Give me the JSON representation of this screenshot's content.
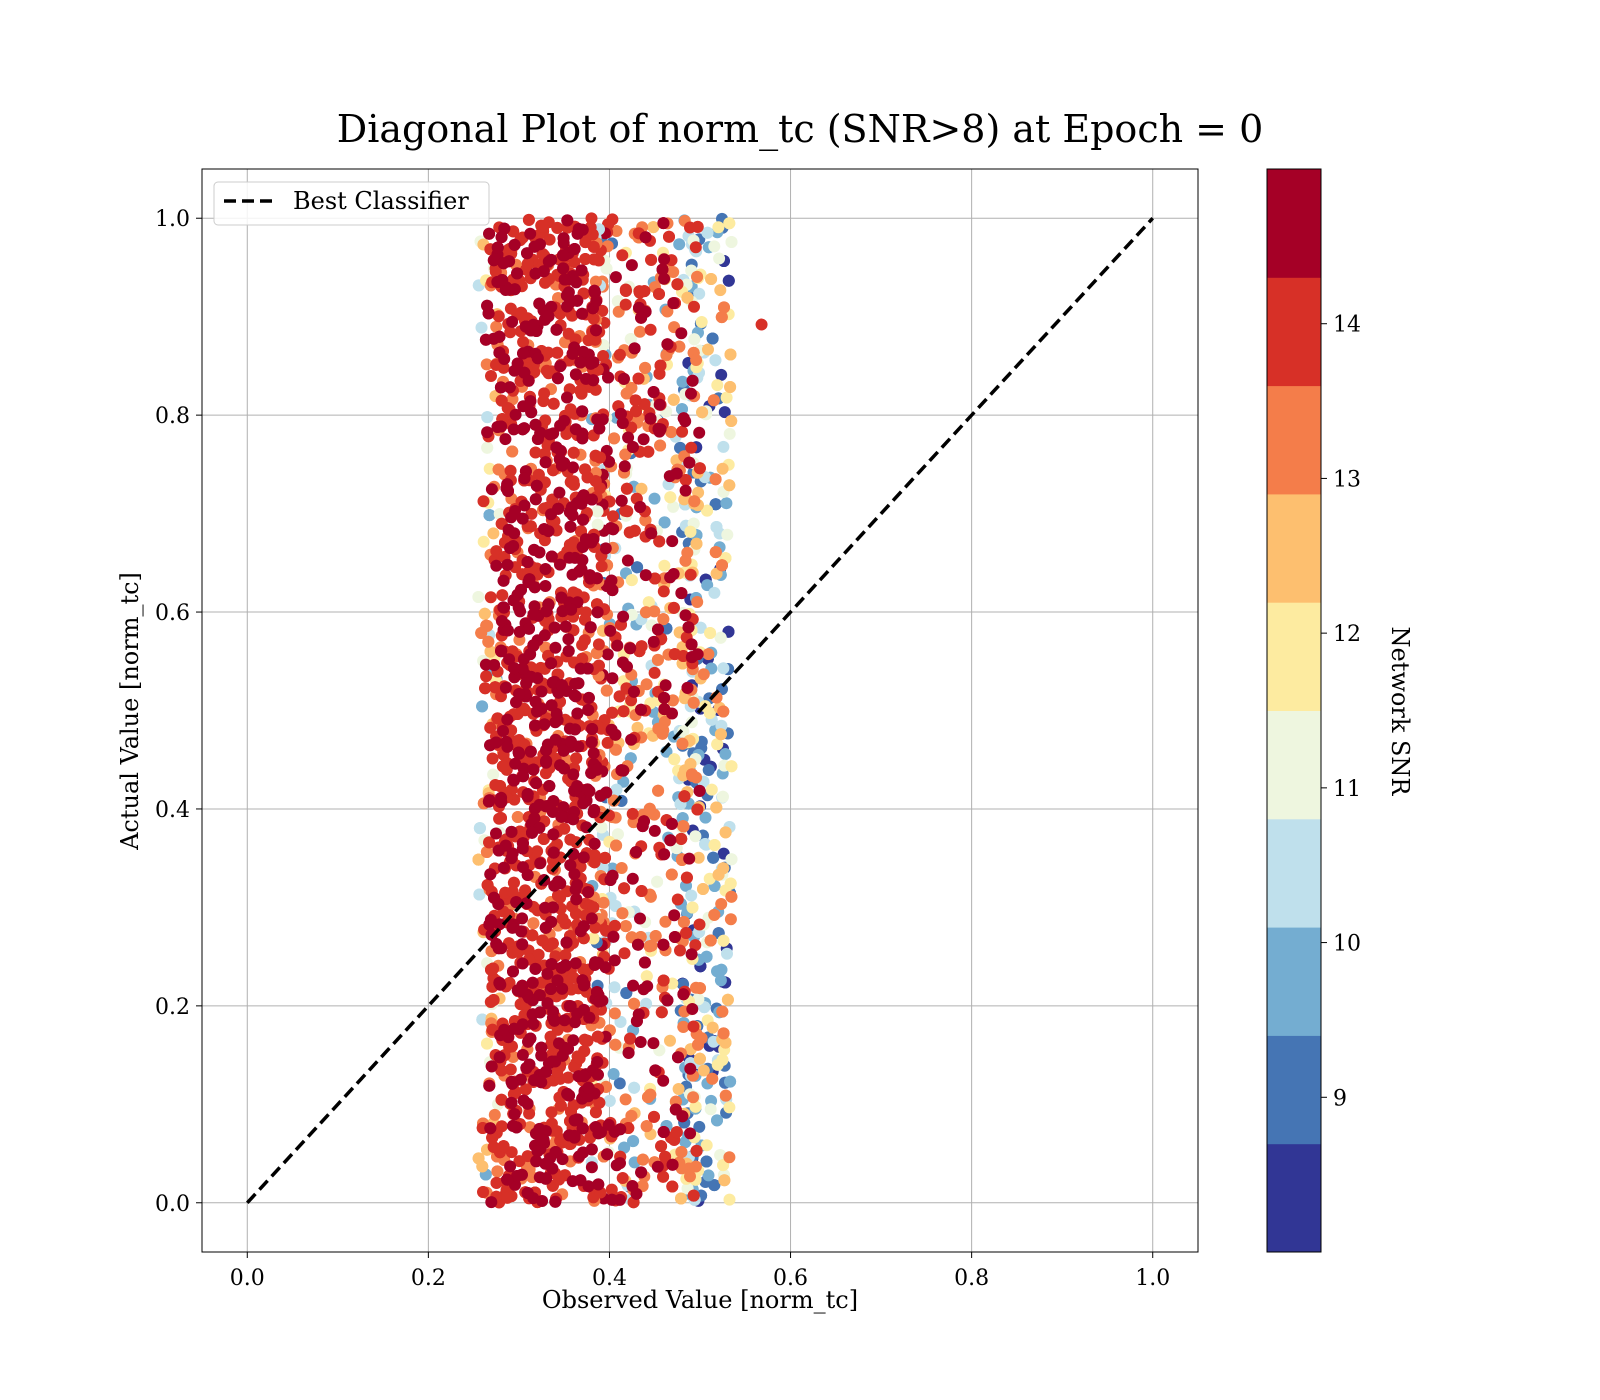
{
  "chart_data": {
    "type": "scatter",
    "title": "Diagonal Plot of norm_tc (SNR>8) at Epoch = 0",
    "xlabel": "Observed Value [norm_tc]",
    "ylabel": "Actual Value [norm_tc]",
    "xlim": [
      -0.05,
      1.05
    ],
    "ylim": [
      -0.05,
      1.05
    ],
    "xticks": [
      "0.0",
      "0.2",
      "0.4",
      "0.6",
      "0.8",
      "1.0"
    ],
    "yticks": [
      "0.0",
      "0.2",
      "0.4",
      "0.6",
      "0.8",
      "1.0"
    ],
    "grid": true,
    "legend": {
      "position": "upper-left",
      "entries": [
        "Best Classifier"
      ]
    },
    "reference_line": {
      "name": "Best Classifier",
      "style": "dashed",
      "color": "#000000",
      "x": [
        0.0,
        1.0
      ],
      "y": [
        0.0,
        1.0
      ]
    },
    "scatter": {
      "x_range": [
        0.25,
        0.57
      ],
      "y_range": [
        0.0,
        1.0
      ],
      "dense_center_x": 0.33,
      "description_color_trend": "high SNR concentrated at low observed values; low SNR at right edge",
      "outlier": {
        "x": 0.568,
        "y": 0.892,
        "snr": 13.8
      }
    },
    "colorbar": {
      "label": "Network SNR",
      "ticks": [
        "9",
        "10",
        "11",
        "12",
        "13",
        "14"
      ],
      "range": [
        8.0,
        15.0
      ],
      "bins": [
        {
          "from": 8.0,
          "to": 8.7,
          "color": "#313695"
        },
        {
          "from": 8.7,
          "to": 9.4,
          "color": "#4575b4"
        },
        {
          "from": 9.4,
          "to": 10.1,
          "color": "#74add1"
        },
        {
          "from": 10.1,
          "to": 10.8,
          "color": "#bfe0ec"
        },
        {
          "from": 10.8,
          "to": 11.5,
          "color": "#eef6df"
        },
        {
          "from": 11.5,
          "to": 12.2,
          "color": "#fdeba0"
        },
        {
          "from": 12.2,
          "to": 12.9,
          "color": "#fdbf6f"
        },
        {
          "from": 12.9,
          "to": 13.6,
          "color": "#f47d4a"
        },
        {
          "from": 13.6,
          "to": 14.3,
          "color": "#d73027"
        },
        {
          "from": 14.3,
          "to": 15.0,
          "color": "#a50026"
        }
      ]
    }
  }
}
